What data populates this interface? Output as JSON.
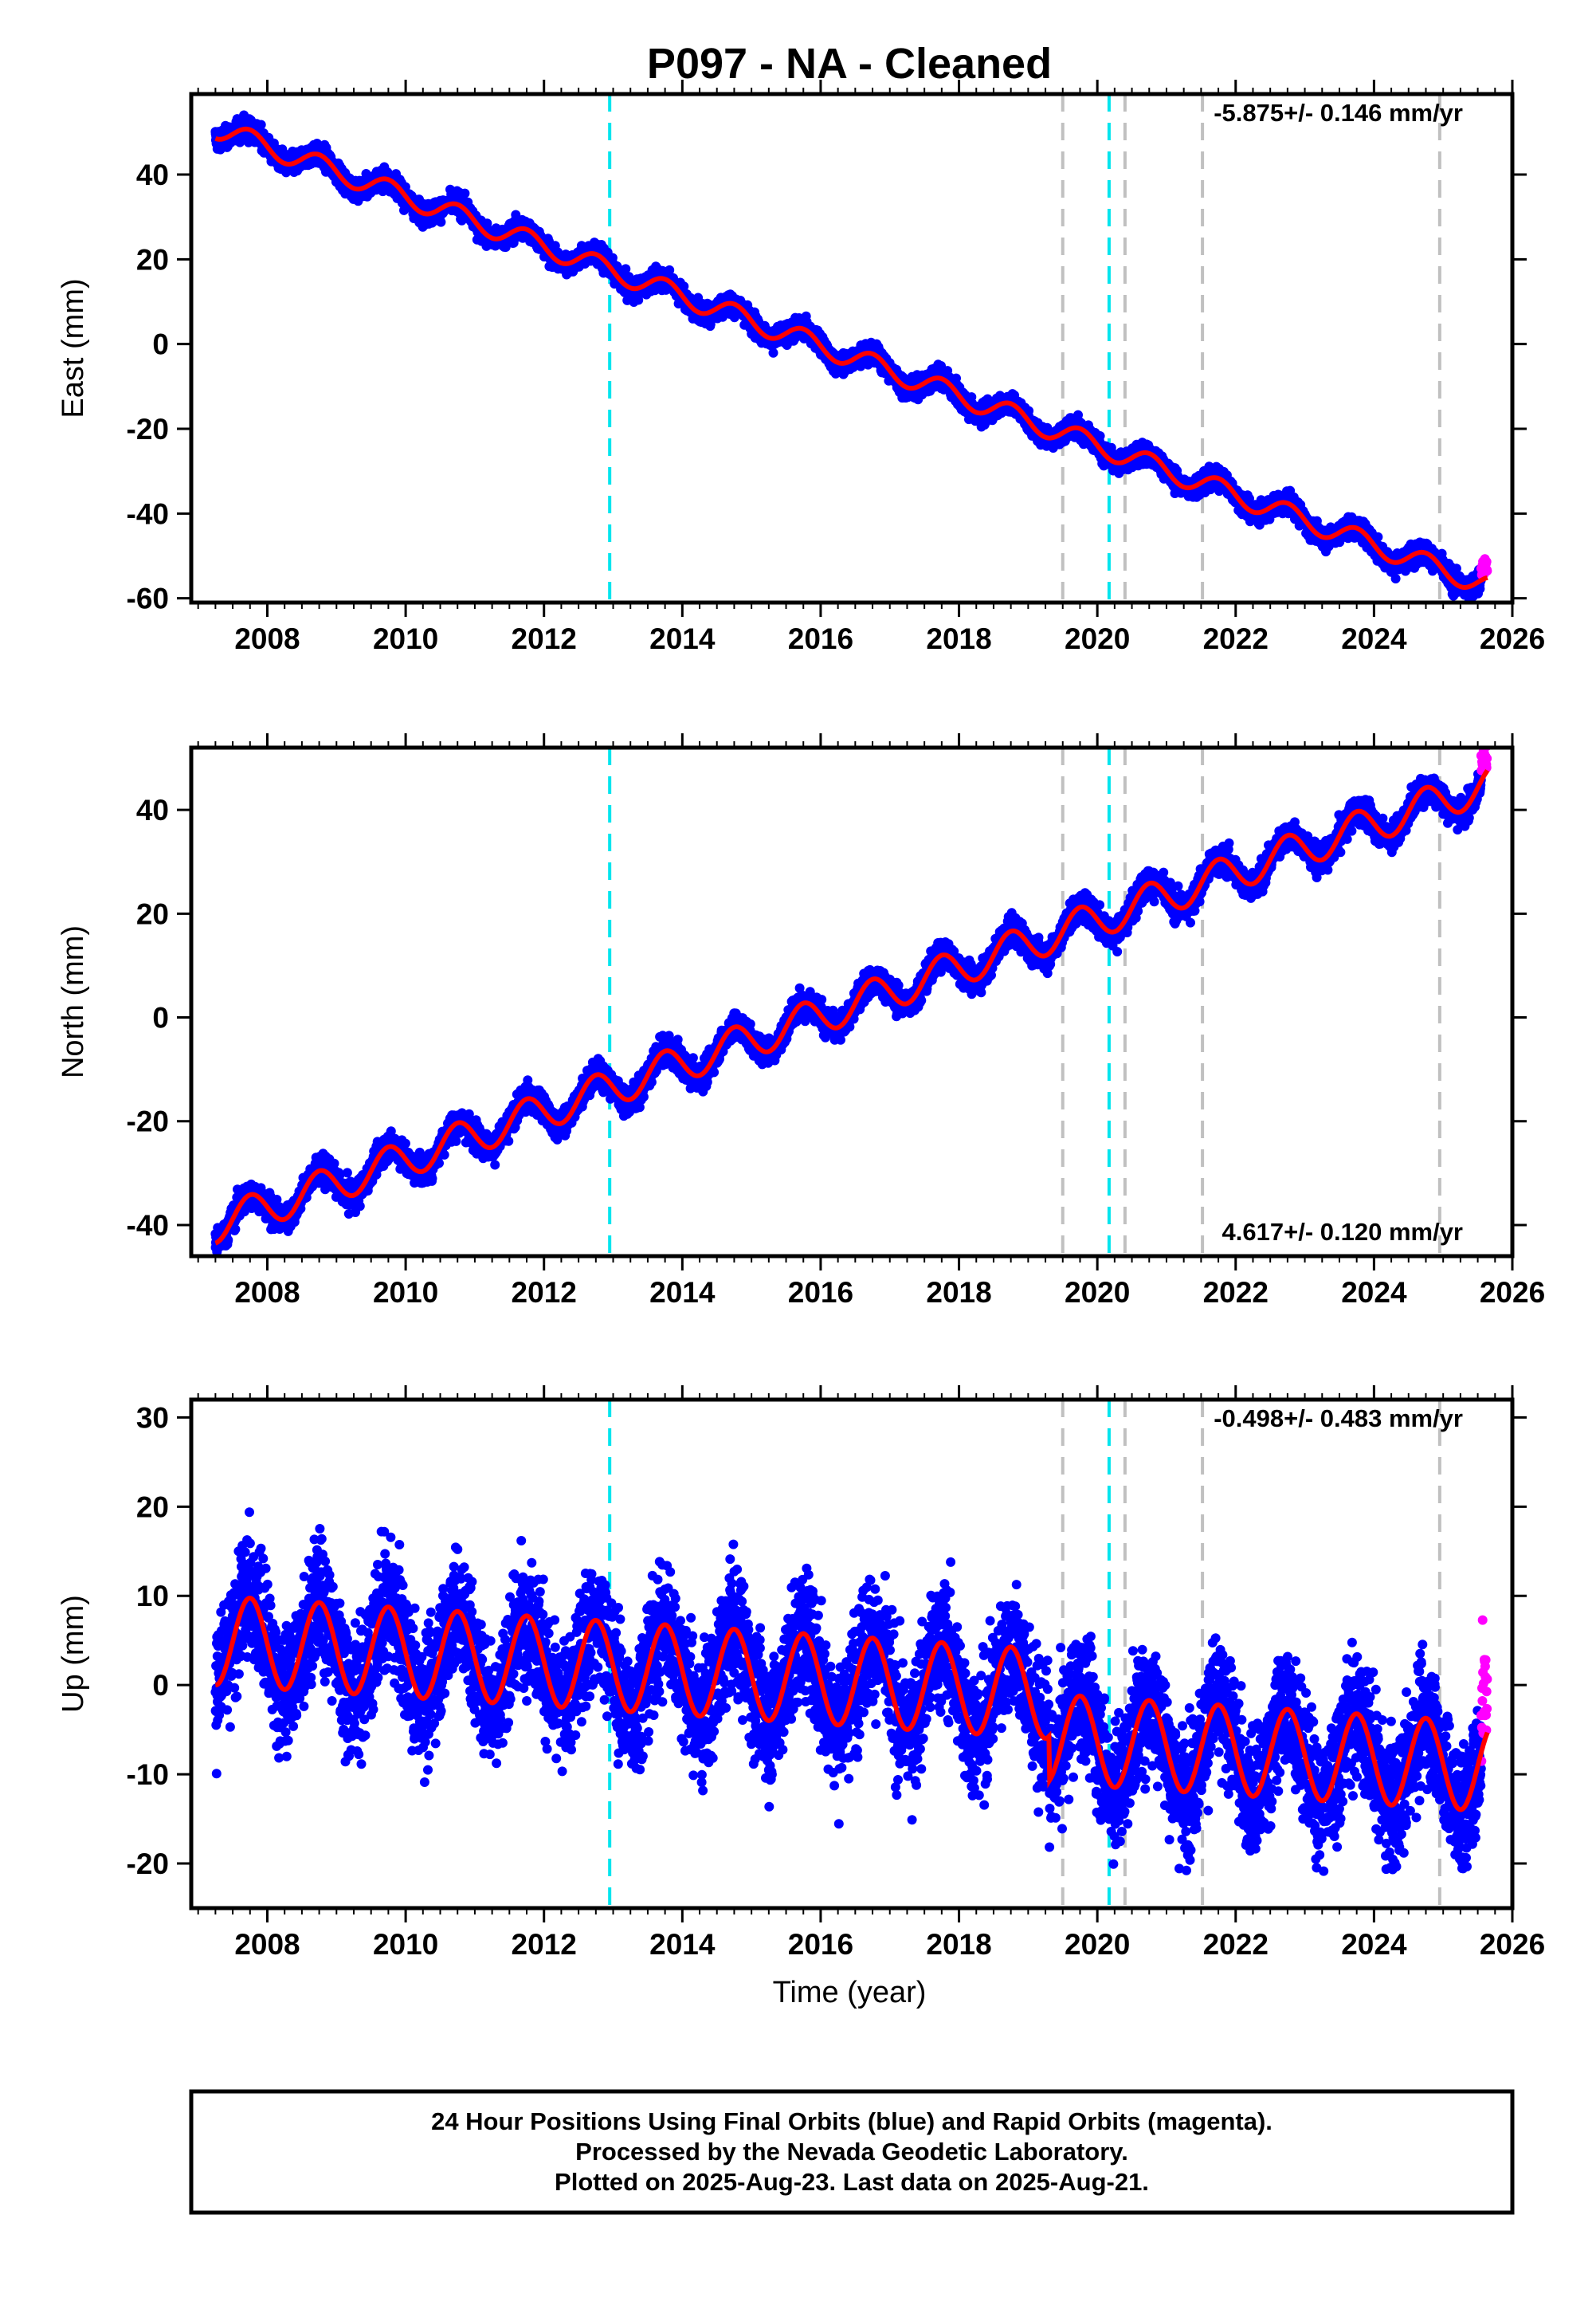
{
  "title": "P097  - NA - Cleaned",
  "xlabel": "Time (year)",
  "footer": [
    "24 Hour Positions Using Final Orbits (blue) and Rapid Orbits (magenta).",
    "Processed by the Nevada Geodetic Laboratory.",
    "Plotted on 2025-Aug-23. Last data on 2025-Aug-21."
  ],
  "colors": {
    "final_orbits": "#0000ff",
    "rapid_orbits": "#ff00ff",
    "model_fit": "#ff0000",
    "antenna_change": "#00e5ee",
    "equipment_change": "#c0c0c0"
  },
  "chart_data": [
    {
      "type": "scatter",
      "panel": "east",
      "ylabel": "East (mm)",
      "rate_label": "-5.875+/- 0.146 mm/yr",
      "xlim": [
        2006.9,
        2026.0
      ],
      "ylim": [
        -61,
        59
      ],
      "x_ticks": [
        "2008",
        "2010",
        "2012",
        "2014",
        "2016",
        "2018",
        "2020",
        "2022",
        "2024",
        "2026"
      ],
      "y_ticks": [
        "40",
        "20",
        "0",
        "-20",
        "-40",
        "-60"
      ],
      "rate_mm_per_yr": -5.875,
      "value_at_start": 51,
      "seasonal_amplitude_mm": 2.5,
      "scatter_mm": 1.2,
      "x_range": [
        2007.25,
        2025.64
      ],
      "rapid_orbits_x_range": [
        2025.55,
        2025.64
      ],
      "antenna_change_x": [
        2012.95,
        2020.17
      ],
      "equipment_change_x": [
        2019.5,
        2020.4,
        2021.52,
        2024.95
      ]
    },
    {
      "type": "scatter",
      "panel": "north",
      "ylabel": "North (mm)",
      "rate_label": "4.617+/- 0.120 mm/yr",
      "xlim": [
        2006.9,
        2026.0
      ],
      "ylim": [
        -46,
        52
      ],
      "x_ticks": [
        "2008",
        "2010",
        "2012",
        "2014",
        "2016",
        "2018",
        "2020",
        "2022",
        "2024",
        "2026"
      ],
      "y_ticks": [
        "40",
        "20",
        "0",
        "-20",
        "-40"
      ],
      "rate_mm_per_yr": 4.617,
      "value_at_start": -40,
      "seasonal_amplitude_mm": 3.5,
      "scatter_mm": 1.3,
      "x_range": [
        2007.25,
        2025.64
      ],
      "rapid_orbits_x_range": [
        2025.55,
        2025.64
      ],
      "antenna_change_x": [
        2012.95,
        2020.17
      ],
      "equipment_change_x": [
        2019.5,
        2020.4,
        2021.52,
        2024.95
      ]
    },
    {
      "type": "scatter",
      "panel": "up",
      "ylabel": "Up (mm)",
      "rate_label": "-0.498+/- 0.483 mm/yr",
      "xlim": [
        2006.9,
        2026.0
      ],
      "ylim": [
        -25,
        32
      ],
      "x_ticks": [
        "2008",
        "2010",
        "2012",
        "2014",
        "2016",
        "2018",
        "2020",
        "2022",
        "2024",
        "2026"
      ],
      "y_ticks": [
        "30",
        "20",
        "10",
        "0",
        "-10",
        "-20"
      ],
      "rate_mm_per_yr": -0.498,
      "value_at_start": 5,
      "seasonal_amplitude_mm": 5,
      "scatter_mm": 3.5,
      "offset_after_2019_mm": -5,
      "x_range": [
        2007.25,
        2025.64
      ],
      "rapid_orbits_x_range": [
        2025.55,
        2025.64
      ],
      "antenna_change_x": [
        2012.95,
        2020.17
      ],
      "equipment_change_x": [
        2019.5,
        2020.4,
        2021.52,
        2024.95
      ]
    }
  ]
}
